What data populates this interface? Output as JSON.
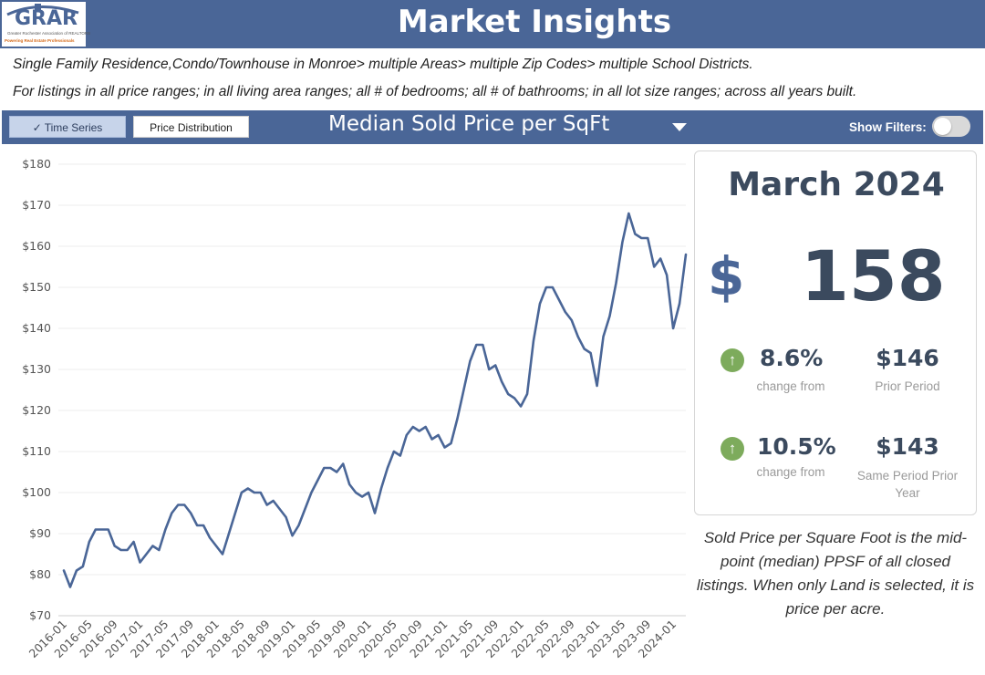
{
  "logo": {
    "name": "GRAR",
    "tagline": "Greater Rochester Association of REALTORS",
    "slogan": "Powering Real Estate Professionals"
  },
  "header": {
    "title": "Market Insights"
  },
  "description": {
    "line1": "Single Family Residence,Condo/Townhouse in Monroe> multiple Areas> multiple Zip Codes> multiple School Districts.",
    "line2": "For listings in all price ranges; in all living area ranges; all # of bedrooms; all # of bathrooms; in all lot size ranges; across all years built."
  },
  "toolbar": {
    "tab_time_series": "Time Series",
    "tab_price_distribution": "Price Distribution",
    "metric_label": "Median Sold Price per SqFt",
    "show_filters_label": "Show Filters:"
  },
  "summary": {
    "period": "March 2024",
    "currency_symbol": "$",
    "value": "158",
    "change1_pct": "8.6%",
    "change1_caption": "change from",
    "prior_value": "$146",
    "prior_caption": "Prior Period",
    "change2_pct": "10.5%",
    "change2_caption": "change from",
    "prior_year_value": "$143",
    "prior_year_caption": "Same Period Prior Year"
  },
  "footnote": "Sold Price per Square Foot is the mid-point (median) PPSF of all closed listings. When only Land is selected, it is price per acre.",
  "colors": {
    "header_bg": "#4a6697",
    "line": "#4a6697",
    "up_arrow": "#7dab5c"
  },
  "chart_data": {
    "type": "line",
    "title": "Median Sold Price per SqFt",
    "ylim": [
      70,
      180
    ],
    "y_ticks": [
      70,
      80,
      90,
      100,
      110,
      120,
      130,
      140,
      150,
      160,
      170,
      180
    ],
    "y_tick_labels": [
      "$70",
      "$80",
      "$90",
      "$100",
      "$110",
      "$120",
      "$130",
      "$140",
      "$150",
      "$160",
      "$170",
      "$180"
    ],
    "x_tick_labels": [
      "2016-01",
      "2016-05",
      "2016-09",
      "2017-01",
      "2017-05",
      "2017-09",
      "2018-01",
      "2018-05",
      "2018-09",
      "2019-01",
      "2019-05",
      "2019-09",
      "2020-01",
      "2020-05",
      "2020-09",
      "2021-01",
      "2021-05",
      "2021-09",
      "2022-01",
      "2022-05",
      "2022-09",
      "2023-01",
      "2023-05",
      "2023-09",
      "2024-01"
    ],
    "start_month": "2016-01",
    "series": [
      {
        "name": "Median Sold Price per SqFt",
        "values": [
          81,
          77,
          81,
          82,
          88,
          91,
          91,
          91,
          87,
          86,
          86,
          88,
          83,
          85,
          87,
          86,
          91,
          95,
          97,
          97,
          95,
          92,
          92,
          89,
          87,
          85,
          90,
          95,
          100,
          101,
          100,
          100,
          97,
          98,
          96,
          94,
          89.5,
          92,
          96,
          100,
          103,
          106,
          106,
          105,
          107,
          102,
          100,
          99,
          100,
          95,
          101,
          106,
          110,
          109,
          114,
          116,
          115,
          116,
          113,
          114,
          111,
          112,
          118,
          125,
          132,
          136,
          136,
          130,
          131,
          127,
          124,
          123,
          121,
          124,
          137,
          146,
          150,
          150,
          147,
          144,
          142,
          138,
          135,
          134,
          126,
          138,
          143,
          151,
          161,
          168,
          163,
          162,
          162,
          155,
          157,
          153,
          140,
          146,
          158
        ]
      }
    ]
  }
}
